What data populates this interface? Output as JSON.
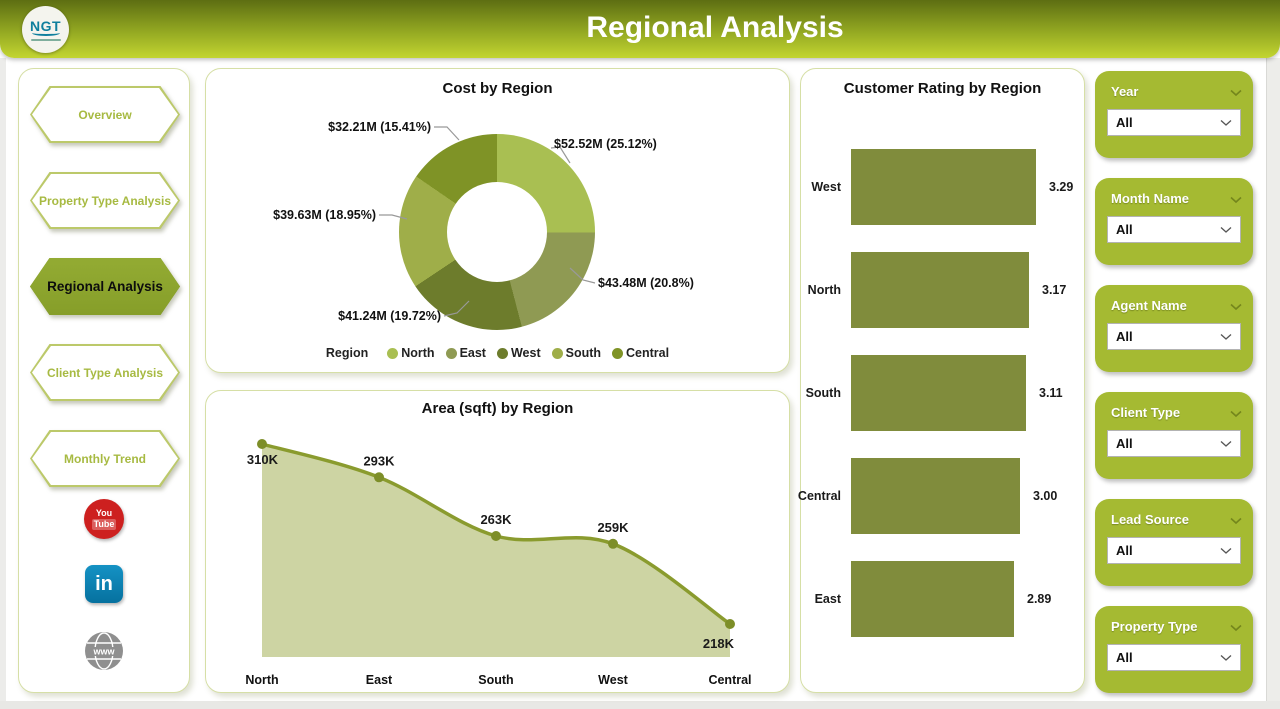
{
  "header": {
    "title": "Regional Analysis",
    "logo_text": "NGT"
  },
  "sidebar": {
    "items": [
      {
        "label": "Overview",
        "active": false
      },
      {
        "label": "Property Type Analysis",
        "active": false
      },
      {
        "label": "Regional Analysis",
        "active": true
      },
      {
        "label": "Client Type Analysis",
        "active": false
      },
      {
        "label": "Monthly Trend",
        "active": false
      }
    ],
    "social": {
      "youtube_line1": "You",
      "youtube_line2": "Tube",
      "linkedin": "in",
      "web": "www"
    }
  },
  "filters": [
    {
      "label": "Year",
      "value": "All"
    },
    {
      "label": "Month Name",
      "value": "All"
    },
    {
      "label": "Agent Name",
      "value": "All"
    },
    {
      "label": "Client Type",
      "value": "All"
    },
    {
      "label": "Lead Source",
      "value": "All"
    },
    {
      "label": "Property Type",
      "value": "All"
    }
  ],
  "chart_data": [
    {
      "type": "pie",
      "subtype": "donut",
      "title": "Cost by Region",
      "legend_title": "Region",
      "legend_position": "bottom",
      "slices": [
        {
          "region": "North",
          "value_millions": 52.52,
          "pct": 25.12,
          "label": "$52.52M (25.12%)",
          "color": "#a9bf52"
        },
        {
          "region": "East",
          "value_millions": 43.48,
          "pct": 20.8,
          "label": "$43.48M (20.8%)",
          "color": "#8f9a53"
        },
        {
          "region": "West",
          "value_millions": 41.24,
          "pct": 19.72,
          "label": "$41.24M (19.72%)",
          "color": "#6d7c2c"
        },
        {
          "region": "South",
          "value_millions": 39.63,
          "pct": 18.95,
          "label": "$39.63M (18.95%)",
          "color": "#9fae49"
        },
        {
          "region": "Central",
          "value_millions": 32.21,
          "pct": 15.41,
          "label": "$32.21M (15.41%)",
          "color": "#7f9326"
        }
      ]
    },
    {
      "type": "area",
      "title": "Area (sqft) by Region",
      "categories": [
        "North",
        "East",
        "South",
        "West",
        "Central"
      ],
      "values": [
        310000,
        293000,
        263000,
        259000,
        218000
      ],
      "labels": [
        "310K",
        "293K",
        "263K",
        "259K",
        "218K"
      ],
      "line_color": "#8a9b2e",
      "fill_color": "#cdd4a3",
      "dot_color": "#7d8e28"
    },
    {
      "type": "bar",
      "orientation": "horizontal",
      "title": "Customer Rating by Region",
      "categories": [
        "West",
        "North",
        "South",
        "Central",
        "East"
      ],
      "values": [
        3.29,
        3.17,
        3.11,
        3.0,
        2.89
      ],
      "value_labels": [
        "3.29",
        "3.17",
        "3.11",
        "3.00",
        "2.89"
      ],
      "bar_color": "#808c3c",
      "xlim": [
        0,
        3.5
      ]
    }
  ]
}
